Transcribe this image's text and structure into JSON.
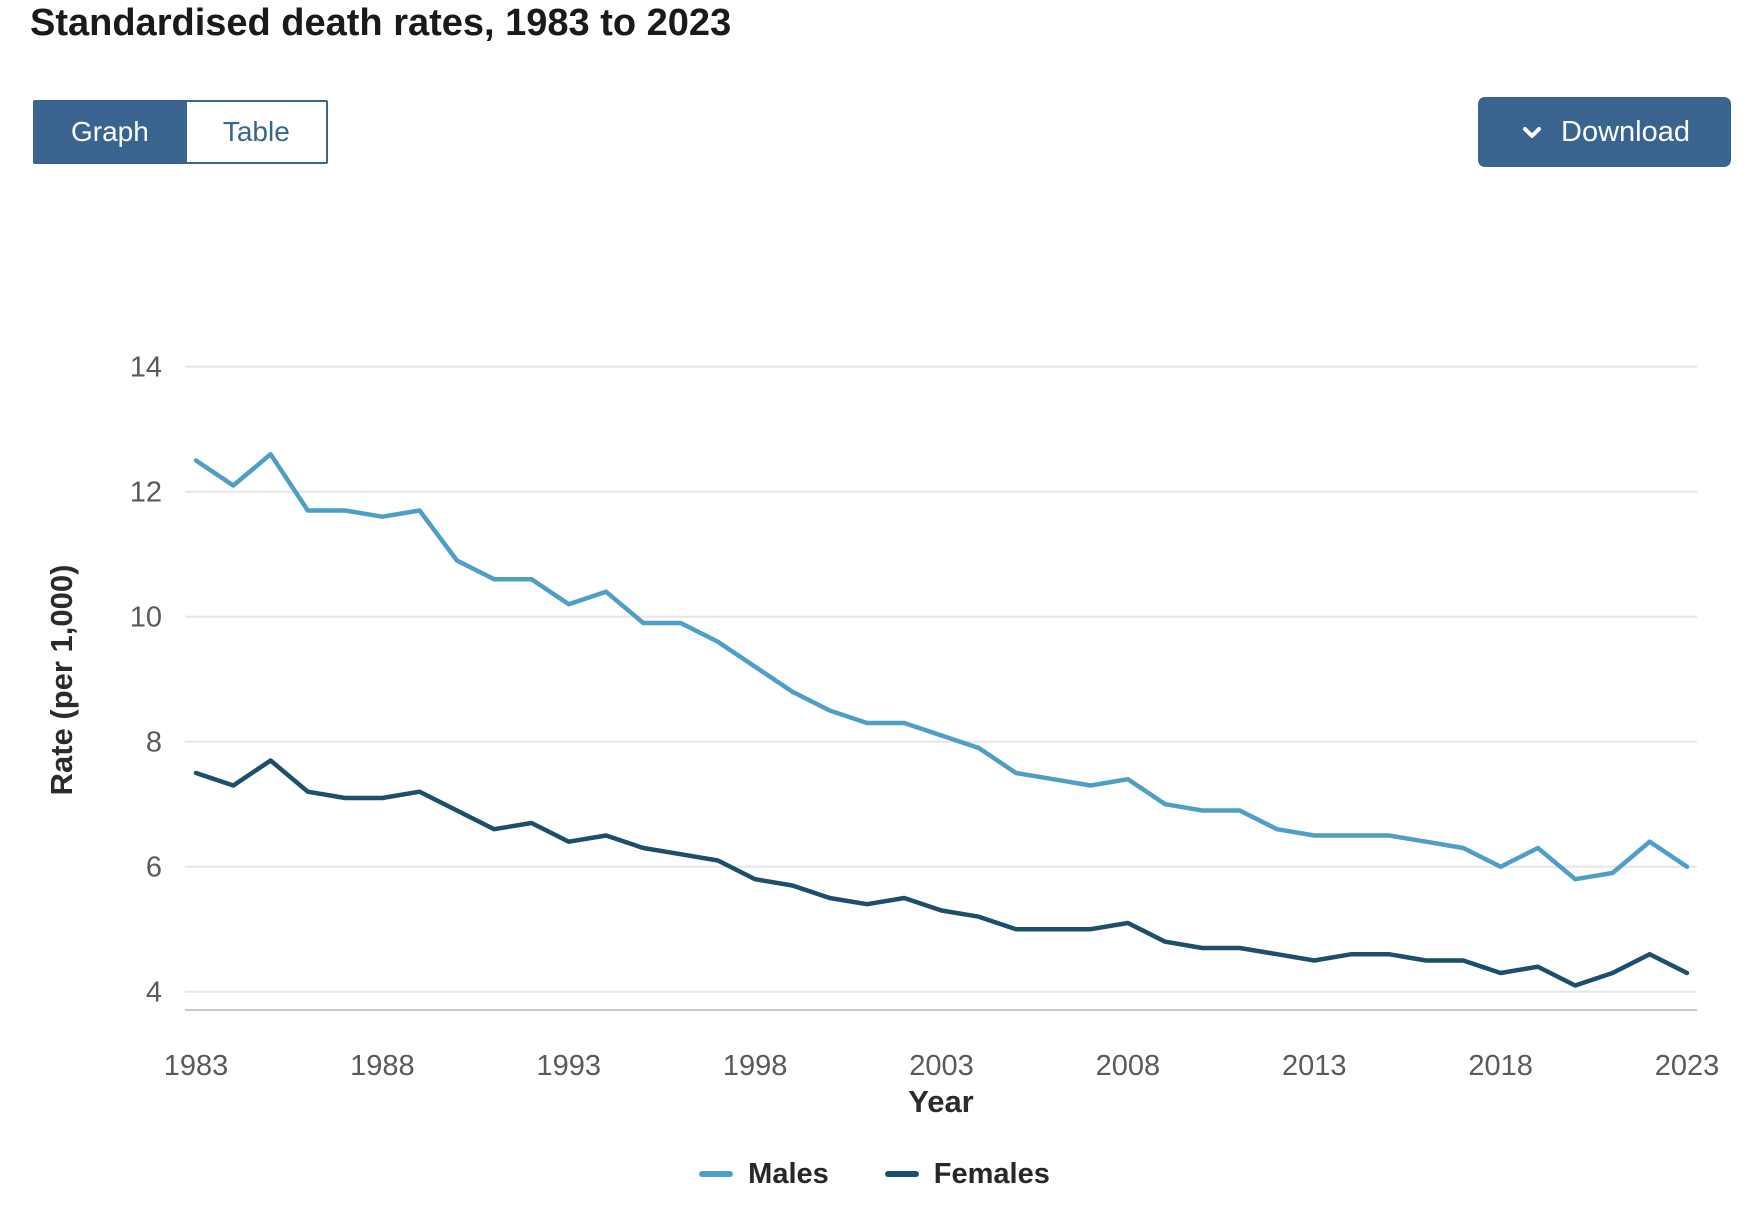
{
  "header": {
    "title": "Standardised death rates, 1983 to 2023"
  },
  "toolbar": {
    "graph_label": "Graph",
    "table_label": "Table",
    "download_label": "Download",
    "button_color": "#38648f"
  },
  "chart_data": {
    "type": "line",
    "title": "Standardised death rates, 1983 to 2023",
    "xlabel": "Year",
    "ylabel": "Rate (per 1,000)",
    "x": [
      1983,
      1984,
      1985,
      1986,
      1987,
      1988,
      1989,
      1990,
      1991,
      1992,
      1993,
      1994,
      1995,
      1996,
      1997,
      1998,
      1999,
      2000,
      2001,
      2002,
      2003,
      2004,
      2005,
      2006,
      2007,
      2008,
      2009,
      2010,
      2011,
      2012,
      2013,
      2014,
      2015,
      2016,
      2017,
      2018,
      2019,
      2020,
      2021,
      2022,
      2023
    ],
    "x_ticks": [
      1983,
      1988,
      1993,
      1998,
      2003,
      2008,
      2013,
      2018,
      2023
    ],
    "y_ticks": [
      4,
      6,
      8,
      10,
      12,
      14
    ],
    "ylim": [
      4,
      14
    ],
    "grid": "horizontal",
    "legend_position": "bottom",
    "series": [
      {
        "name": "Males",
        "color": "#4f9ec7",
        "values": [
          12.5,
          12.1,
          12.6,
          11.7,
          11.7,
          11.6,
          11.7,
          10.9,
          10.6,
          10.6,
          10.2,
          10.4,
          9.9,
          9.9,
          9.6,
          9.2,
          8.8,
          8.5,
          8.3,
          8.3,
          8.1,
          7.9,
          7.5,
          7.4,
          7.3,
          7.4,
          7.0,
          6.9,
          6.9,
          6.6,
          6.5,
          6.5,
          6.5,
          6.4,
          6.3,
          6.0,
          6.3,
          5.8,
          5.9,
          6.4,
          6.0
        ]
      },
      {
        "name": "Females",
        "color": "#1d4e6c",
        "values": [
          7.5,
          7.3,
          7.7,
          7.2,
          7.1,
          7.1,
          7.2,
          6.9,
          6.6,
          6.7,
          6.4,
          6.5,
          6.3,
          6.2,
          6.1,
          5.8,
          5.7,
          5.5,
          5.4,
          5.5,
          5.3,
          5.2,
          5.0,
          5.0,
          5.0,
          5.1,
          4.8,
          4.7,
          4.7,
          4.6,
          4.5,
          4.6,
          4.6,
          4.5,
          4.5,
          4.3,
          4.4,
          4.1,
          4.3,
          4.6,
          4.3
        ]
      }
    ],
    "grid_color": "#e6e6e6",
    "axis_line_color": "#c9c9c9",
    "tick_color": "#5a5a5a"
  }
}
